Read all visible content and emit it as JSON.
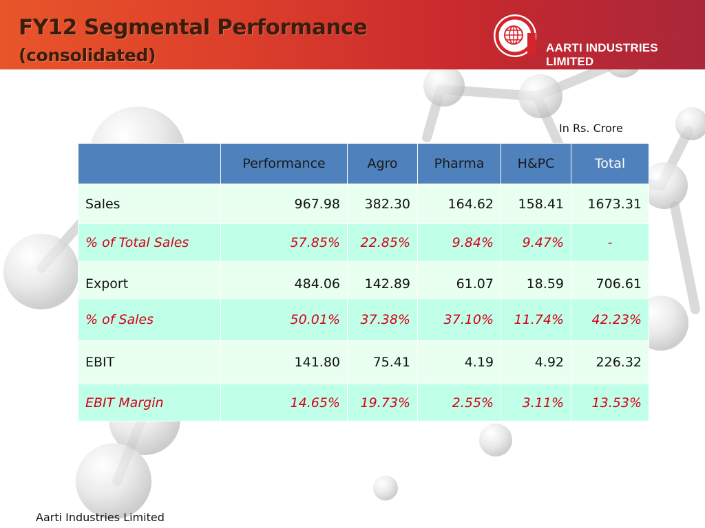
{
  "header": {
    "title_line1": "FY12 Segmental Performance",
    "title_line2": "(consolidated)",
    "company_logo_text": "AARTI INDUSTRIES LIMITED"
  },
  "unit_note": "In Rs. Crore",
  "table": {
    "columns": [
      "",
      "Performance",
      "Agro",
      "Pharma",
      "H&PC",
      "Total"
    ],
    "rows": [
      {
        "label": "Sales",
        "values": [
          "967.98",
          "382.30",
          "164.62",
          "158.41",
          "1673.31"
        ]
      },
      {
        "label": "% of Total Sales",
        "values": [
          "57.85%",
          "22.85%",
          "9.84%",
          "9.47%",
          "-"
        ]
      },
      {
        "label": "Export",
        "values": [
          "484.06",
          "142.89",
          "61.07",
          "18.59",
          "706.61"
        ]
      },
      {
        "label": "% of Sales",
        "values": [
          "50.01%",
          "37.38%",
          "37.10%",
          "11.74%",
          "42.23%"
        ]
      },
      {
        "label": "EBIT",
        "values": [
          "141.80",
          "75.41",
          "4.19",
          "4.92",
          "226.32"
        ]
      },
      {
        "label": "EBIT Margin",
        "values": [
          "14.65%",
          "19.73%",
          "2.55%",
          "3.11%",
          "13.53%"
        ]
      }
    ]
  },
  "footer": "Aarti Industries Limited",
  "colors": {
    "header_start": "#e8552a",
    "header_end": "#a51c30",
    "table_header": "#4f81bd",
    "row_light": "#e9fff0",
    "row_mint": "#c0ffe8",
    "percent_text": "#d80016"
  }
}
